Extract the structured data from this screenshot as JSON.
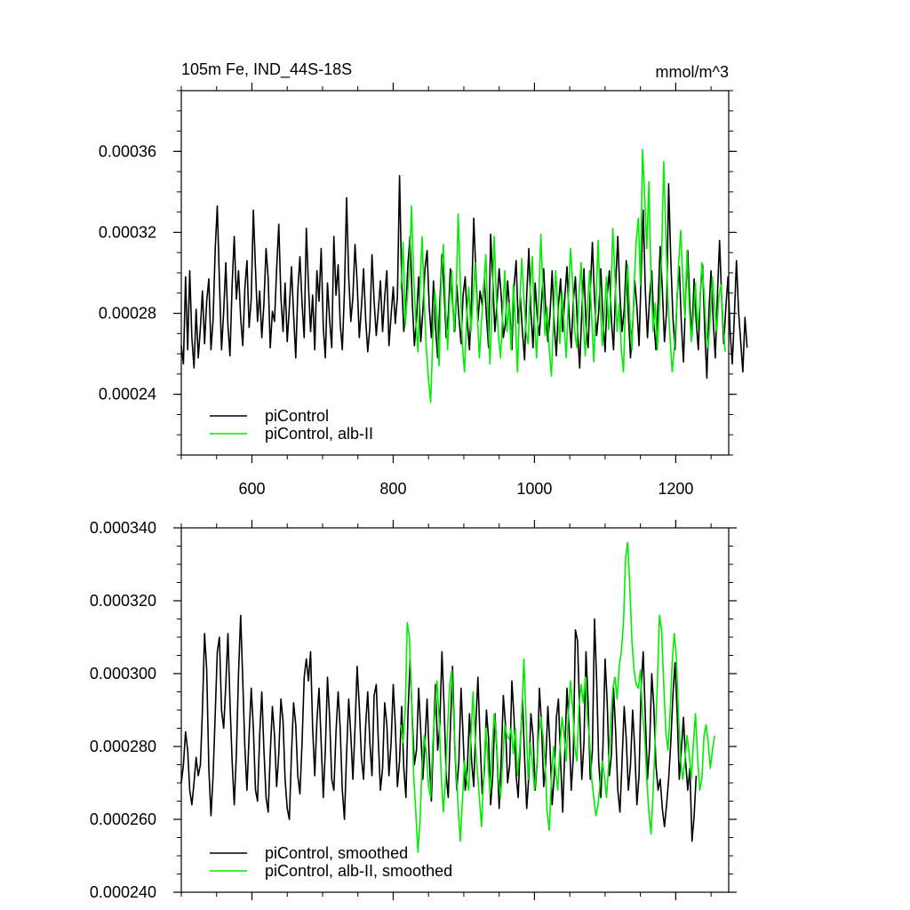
{
  "chart_data": [
    {
      "type": "line",
      "title": "105m Fe, IND_44S-18S",
      "units": "mmol/m^3",
      "xlim": [
        500,
        1275
      ],
      "ylim": [
        0.00021,
        0.00039
      ],
      "x_ticks": [
        600,
        800,
        1000,
        1200
      ],
      "y_ticks": [
        0.00024,
        0.00028,
        0.00032,
        0.00036
      ],
      "y_tick_labels": [
        "0.00024",
        "0.00028",
        "0.00032",
        "0.00036"
      ],
      "x_tick_labels": [
        "600",
        "800",
        "1000",
        "1200"
      ],
      "legend_position": "bottom-left",
      "series": [
        {
          "name": "piControl",
          "color": "#000000",
          "x_start": 500,
          "x_step": 3,
          "values": [
            0.000264,
            0.000255,
            0.000298,
            0.000262,
            0.000301,
            0.000268,
            0.000253,
            0.000282,
            0.000258,
            0.000273,
            0.000291,
            0.000265,
            0.000286,
            0.000297,
            0.000262,
            0.000277,
            0.000312,
            0.000333,
            0.000296,
            0.000262,
            0.000281,
            0.000305,
            0.000274,
            0.000259,
            0.000294,
            0.000318,
            0.000287,
            0.000301,
            0.000278,
            0.000264,
            0.000292,
            0.000306,
            0.000273,
            0.000287,
            0.000331,
            0.000302,
            0.000276,
            0.000291,
            0.000268,
            0.000285,
            0.000312,
            0.000297,
            0.000263,
            0.000281,
            0.000276,
            0.000302,
            0.000324,
            0.000288,
            0.000271,
            0.000295,
            0.000266,
            0.000283,
            0.000303,
            0.000279,
            0.000258,
            0.000291,
            0.000308,
            0.000285,
            0.000268,
            0.000322,
            0.000294,
            0.000271,
            0.000289,
            0.000262,
            0.000301,
            0.000286,
            0.000312,
            0.000273,
            0.000258,
            0.000295,
            0.000277,
            0.000263,
            0.000318,
            0.000289,
            0.000304,
            0.000275,
            0.000262,
            0.000291,
            0.000337,
            0.000298,
            0.000276,
            0.000288,
            0.000314,
            0.000295,
            0.000268,
            0.000283,
            0.000302,
            0.000277,
            0.000261,
            0.000273,
            0.000309,
            0.000286,
            0.000269,
            0.000282,
            0.000296,
            0.000271,
            0.000288,
            0.000301,
            0.000264,
            0.000279,
            0.000293,
            0.000275,
            0.000288,
            0.000348,
            0.000296,
            0.000271,
            0.000283,
            0.000305,
            0.000318,
            0.000286,
            0.000264,
            0.000277,
            0.000298,
            0.000266,
            0.000281,
            0.000302,
            0.000311,
            0.000283,
            0.000268,
            0.000296,
            0.000273,
            0.000258,
            0.000285,
            0.000309,
            0.000291,
            0.000268,
            0.000279,
            0.000302,
            0.000286,
            0.000271,
            0.000294,
            0.000278,
            0.000265,
            0.000289,
            0.000298,
            0.000276,
            0.000262,
            0.000288,
            0.000327,
            0.000301,
            0.000276,
            0.000291,
            0.000284,
            0.000297,
            0.000278,
            0.000263,
            0.000319,
            0.000296,
            0.000271,
            0.000285,
            0.000302,
            0.000288,
            0.000268,
            0.000275,
            0.000296,
            0.000281,
            0.000262,
            0.000293,
            0.000306,
            0.000275,
            0.000288,
            0.000271,
            0.000257,
            0.000289,
            0.000312,
            0.000281,
            0.000263,
            0.000295,
            0.000278,
            0.000269,
            0.000286,
            0.000302,
            0.000281,
            0.000266,
            0.000279,
            0.000301,
            0.000274,
            0.000259,
            0.000284,
            0.000297,
            0.000271,
            0.000288,
            0.000303,
            0.000279,
            0.000263,
            0.000286,
            0.000298,
            0.000272,
            0.000253,
            0.000281,
            0.000302,
            0.000274,
            0.000263,
            0.000291,
            0.000315,
            0.000287,
            0.000269,
            0.000281,
            0.000302,
            0.000277,
            0.000261,
            0.000289,
            0.000301,
            0.000276,
            0.000262,
            0.000294,
            0.000318,
            0.000289,
            0.000271,
            0.000282,
            0.000306,
            0.000279,
            0.000258,
            0.000274,
            0.000296,
            0.000283,
            0.000264,
            0.000298,
            0.000331,
            0.000291,
            0.000268,
            0.000288,
            0.000301,
            0.000276,
            0.000262,
            0.000285,
            0.000313,
            0.000292,
            0.000266,
            0.000281,
            0.000344,
            0.000307,
            0.000278,
            0.000262,
            0.000289,
            0.000303,
            0.000275,
            0.000256,
            0.000288,
            0.000311,
            0.000284,
            0.000269,
            0.000297,
            0.000276,
            0.000262,
            0.000291,
            0.000304,
            0.000272,
            0.000248,
            0.000281,
            0.000301,
            0.000277,
            0.000258,
            0.000289,
            0.000316,
            0.000287,
            0.000265,
            0.000283,
            0.000298,
            0.000271,
            0.000255,
            0.000279,
            0.000306,
            0.000281,
            0.000266,
            0.000251,
            0.000278,
            0.000263
          ]
        },
        {
          "name": "piControl, alb-II",
          "color": "#00ee00",
          "x_start": 811,
          "x_step": 3,
          "values": [
            0.000292,
            0.000315,
            0.000274,
            0.000288,
            0.000301,
            0.000333,
            0.000298,
            0.000276,
            0.000261,
            0.000294,
            0.000318,
            0.000285,
            0.000262,
            0.000247,
            0.000236,
            0.000268,
            0.000291,
            0.000279,
            0.000254,
            0.000298,
            0.000314,
            0.000283,
            0.000262,
            0.000287,
            0.000301,
            0.000271,
            0.000288,
            0.000329,
            0.000296,
            0.000264,
            0.000251,
            0.000278,
            0.000293,
            0.000271,
            0.000286,
            0.000305,
            0.000281,
            0.000258,
            0.000276,
            0.000291,
            0.000309,
            0.000279,
            0.000255,
            0.000284,
            0.000318,
            0.000288,
            0.000269,
            0.000258,
            0.000281,
            0.000301,
            0.000271,
            0.000285,
            0.000262,
            0.000294,
            0.000276,
            0.000251,
            0.000283,
            0.000307,
            0.000288,
            0.000271,
            0.000265,
            0.000292,
            0.000308,
            0.000276,
            0.000258,
            0.000286,
            0.000319,
            0.000292,
            0.000269,
            0.000283,
            0.000262,
            0.000249,
            0.000278,
            0.000301,
            0.000284,
            0.000265,
            0.000291,
            0.000274,
            0.000258,
            0.000287,
            0.000312,
            0.000296,
            0.000271,
            0.000263,
            0.000289,
            0.000305,
            0.000276,
            0.000259,
            0.000282,
            0.000301,
            0.000278,
            0.000256,
            0.000284,
            0.000316,
            0.000287,
            0.000264,
            0.000279,
            0.000298,
            0.000272,
            0.000288,
            0.000322,
            0.000298,
            0.000271,
            0.000285,
            0.000262,
            0.000251,
            0.000289,
            0.000304,
            0.000278,
            0.000262,
            0.000293,
            0.000316,
            0.000327,
            0.000294,
            0.000361,
            0.000338,
            0.000312,
            0.000345,
            0.000296,
            0.000271,
            0.000285,
            0.000262,
            0.000284,
            0.000309,
            0.000355,
            0.000318,
            0.000287,
            0.000268,
            0.000251,
            0.000263,
            0.000281,
            0.000304,
            0.000321,
            0.000297,
            0.000278,
            0.000311,
            0.000284,
            0.000266,
            0.000279,
            0.000295,
            0.000272,
            0.000284,
            0.000305,
            0.000291,
            0.000271,
            0.000263,
            0.000279,
            0.000298,
            0.000283,
            0.000271,
            0.000288,
            0.000294,
            0.000276,
            0.000261
          ]
        }
      ]
    },
    {
      "type": "line",
      "xlim": [
        500,
        1275
      ],
      "ylim": [
        0.00024,
        0.00034
      ],
      "x_ticks": [
        600,
        800,
        1000,
        1200
      ],
      "y_ticks": [
        0.00024,
        0.00026,
        0.00028,
        0.0003,
        0.00032,
        0.00034
      ],
      "y_tick_labels": [
        "0.000240",
        "0.000260",
        "0.000280",
        "0.000300",
        "0.000320",
        "0.000340"
      ],
      "legend_position": "bottom-left",
      "series": [
        {
          "name": "piControl, smoothed",
          "color": "#000000",
          "x_start": 500,
          "x_step": 3,
          "values": [
            0.00027,
            0.000275,
            0.000284,
            0.000279,
            0.000268,
            0.000264,
            0.00027,
            0.000277,
            0.000272,
            0.000275,
            0.00029,
            0.000311,
            0.000301,
            0.000274,
            0.000261,
            0.000272,
            0.000289,
            0.000306,
            0.00031,
            0.00029,
            0.000285,
            0.000297,
            0.000311,
            0.000292,
            0.000276,
            0.000264,
            0.000278,
            0.0003,
            0.000316,
            0.000298,
            0.00028,
            0.000268,
            0.000283,
            0.000296,
            0.000285,
            0.000268,
            0.000265,
            0.000283,
            0.000295,
            0.000279,
            0.000266,
            0.000262,
            0.000278,
            0.000291,
            0.000283,
            0.000269,
            0.000278,
            0.000293,
            0.000287,
            0.000271,
            0.000263,
            0.00026,
            0.000278,
            0.000292,
            0.000286,
            0.000272,
            0.000267,
            0.000281,
            0.000299,
            0.000304,
            0.000298,
            0.000306,
            0.000285,
            0.000272,
            0.000287,
            0.000296,
            0.000281,
            0.000266,
            0.000279,
            0.000299,
            0.000288,
            0.000271,
            0.000268,
            0.000284,
            0.000295,
            0.000285,
            0.000268,
            0.00026,
            0.000278,
            0.000293,
            0.000283,
            0.000271,
            0.000285,
            0.000302,
            0.000291,
            0.000277,
            0.000271,
            0.000286,
            0.000295,
            0.000281,
            0.000272,
            0.000294,
            0.000297,
            0.000281,
            0.000268,
            0.000274,
            0.000292,
            0.000286,
            0.000272,
            0.000281,
            0.000297,
            0.000286,
            0.000269,
            0.000276,
            0.000291,
            0.000274,
            0.000266,
            0.000289,
            0.000304,
            0.000288,
            0.000275,
            0.000279,
            0.000296,
            0.000284,
            0.000271,
            0.000281,
            0.000293,
            0.000277,
            0.000265,
            0.000283,
            0.000297,
            0.000279,
            0.000286,
            0.000306,
            0.000291,
            0.000272,
            0.000266,
            0.000285,
            0.000302,
            0.000281,
            0.000268,
            0.000276,
            0.000296,
            0.000283,
            0.000268,
            0.000274,
            0.000289,
            0.000276,
            0.000269,
            0.000286,
            0.000299,
            0.000282,
            0.000267,
            0.000273,
            0.00029,
            0.000282,
            0.000264,
            0.000272,
            0.000289,
            0.000278,
            0.000263,
            0.000277,
            0.000294,
            0.000286,
            0.00027,
            0.000275,
            0.000298,
            0.000288,
            0.000272,
            0.000266,
            0.000281,
            0.000293,
            0.000277,
            0.000263,
            0.000272,
            0.000289,
            0.000283,
            0.000268,
            0.000276,
            0.000296,
            0.000286,
            0.000269,
            0.000275,
            0.000291,
            0.00028,
            0.000264,
            0.000272,
            0.000288,
            0.000293,
            0.000276,
            0.000262,
            0.000279,
            0.000296,
            0.000285,
            0.000268,
            0.000277,
            0.000312,
            0.000309,
            0.000289,
            0.000271,
            0.000281,
            0.000306,
            0.000292,
            0.000271,
            0.000279,
            0.000315,
            0.000298,
            0.000276,
            0.000266,
            0.00028,
            0.000304,
            0.000292,
            0.000272,
            0.000278,
            0.000296,
            0.000284,
            0.000268,
            0.000262,
            0.000276,
            0.000291,
            0.000282,
            0.000268,
            0.000275,
            0.00029,
            0.000279,
            0.000264,
            0.000272,
            0.000296,
            0.000306,
            0.000288,
            0.000271,
            0.00028,
            0.0003,
            0.000291,
            0.000275,
            0.000268,
            0.000271,
            0.000263,
            0.000258,
            0.000264,
            0.000271,
            0.000281,
            0.000294,
            0.000303,
            0.000289,
            0.000271,
            0.000279,
            0.000288,
            0.000276,
            0.000268,
            0.000274,
            0.000254,
            0.000261,
            0.000272
          ]
        },
        {
          "name": "piControl, alb-II, smoothed",
          "color": "#00ee00",
          "x_start": 811,
          "x_step": 3,
          "values": [
            0.000286,
            0.000281,
            0.00029,
            0.000314,
            0.00031,
            0.000293,
            0.000272,
            0.000262,
            0.000251,
            0.00026,
            0.000275,
            0.000283,
            0.000278,
            0.000269,
            0.000266,
            0.000281,
            0.000289,
            0.000298,
            0.000288,
            0.000272,
            0.000262,
            0.000271,
            0.000285,
            0.000297,
            0.000301,
            0.000286,
            0.000274,
            0.000263,
            0.000254,
            0.000265,
            0.000276,
            0.000271,
            0.000268,
            0.000283,
            0.000295,
            0.000282,
            0.000274,
            0.000266,
            0.000258,
            0.000271,
            0.000285,
            0.000276,
            0.000267,
            0.000279,
            0.000289,
            0.000283,
            0.000271,
            0.000266,
            0.000276,
            0.000286,
            0.000283,
            0.000282,
            0.000285,
            0.000278,
            0.000285,
            0.000272,
            0.000279,
            0.000288,
            0.000304,
            0.000288,
            0.000271,
            0.000281,
            0.000276,
            0.000268,
            0.000274,
            0.000283,
            0.000288,
            0.000283,
            0.000276,
            0.000262,
            0.000257,
            0.000271,
            0.00028,
            0.000273,
            0.000268,
            0.000279,
            0.000288,
            0.000283,
            0.000276,
            0.000289,
            0.000298,
            0.000291,
            0.00028,
            0.000276,
            0.000291,
            0.000297,
            0.000292,
            0.000299,
            0.000288,
            0.000282,
            0.000271,
            0.000266,
            0.000261,
            0.000264,
            0.00027,
            0.000276,
            0.000272,
            0.000266,
            0.000275,
            0.000287,
            0.000296,
            0.000299,
            0.000293,
            0.000302,
            0.000306,
            0.000314,
            0.000332,
            0.000336,
            0.000324,
            0.000309,
            0.000301,
            0.000297,
            0.000296,
            0.000301,
            0.000289,
            0.000283,
            0.000271,
            0.000262,
            0.000256,
            0.000268,
            0.000282,
            0.000297,
            0.000316,
            0.000312,
            0.000297,
            0.000284,
            0.000279,
            0.000289,
            0.000303,
            0.000311,
            0.000304,
            0.000288,
            0.000276,
            0.000271,
            0.000276,
            0.000283,
            0.000278,
            0.000271,
            0.000281,
            0.000289,
            0.000277,
            0.000268,
            0.000271,
            0.000283,
            0.000286,
            0.000281,
            0.000274,
            0.000279,
            0.000283
          ]
        }
      ]
    }
  ]
}
